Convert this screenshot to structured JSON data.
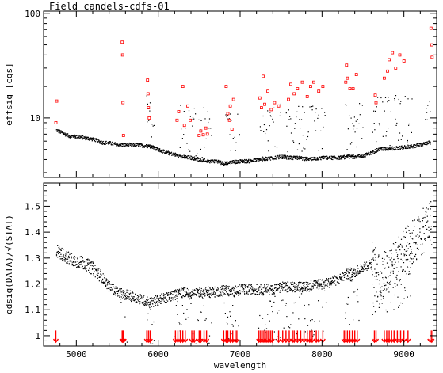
{
  "figure_title": "Field candels-cdfs-01",
  "chart_data": [
    {
      "type": "scatter",
      "panel": "top",
      "title": "",
      "xlabel": "",
      "ylabel": "effsig [cgs]",
      "xlim": [
        4600,
        9400
      ],
      "ylim": [
        2.7,
        105
      ],
      "yscale": "log",
      "yticks_labeled": [
        10,
        100
      ],
      "x_ticks": [
        5000,
        6000,
        7000,
        8000,
        9000
      ],
      "series": [
        {
          "marker": "dot",
          "color": "#000000",
          "x": [
            4750,
            4800,
            4900,
            5000,
            5100,
            5200,
            5300,
            5400,
            5500,
            5600,
            5700,
            5800,
            5900,
            6000,
            6100,
            6200,
            6300,
            6400,
            6500,
            6600,
            6700,
            6800,
            6900,
            7000,
            7100,
            7200,
            7300,
            7400,
            7500,
            7600,
            7700,
            7800,
            7900,
            8000,
            8100,
            8200,
            8300,
            8400,
            8500,
            8600,
            8700,
            8800,
            8900,
            9000,
            9100,
            9200,
            9300
          ],
          "y": [
            7.7,
            7.4,
            6.8,
            6.7,
            6.5,
            6.3,
            5.9,
            5.8,
            5.6,
            5.6,
            5.6,
            5.5,
            5.4,
            5.0,
            4.7,
            4.5,
            4.3,
            4.2,
            4.0,
            3.9,
            3.9,
            3.7,
            3.8,
            3.9,
            3.9,
            4.0,
            4.1,
            4.2,
            4.3,
            4.2,
            4.2,
            4.1,
            4.1,
            4.2,
            4.2,
            4.2,
            4.3,
            4.3,
            4.4,
            4.7,
            5.1,
            5.1,
            5.2,
            5.3,
            5.4,
            5.6,
            5.9
          ]
        },
        {
          "marker": "open-square",
          "color": "#ff0000",
          "x": [
            4750,
            4760,
            5560,
            5565,
            5570,
            5575,
            5870,
            5875,
            5880,
            5890,
            6230,
            6250,
            6300,
            6320,
            6360,
            6390,
            6500,
            6520,
            6550,
            6580,
            6600,
            6830,
            6850,
            6870,
            6880,
            6900,
            6920,
            7240,
            7260,
            7280,
            7300,
            7340,
            7380,
            7420,
            7470,
            7590,
            7620,
            7660,
            7700,
            7760,
            7820,
            7860,
            7900,
            7960,
            8010,
            8290,
            8300,
            8310,
            8340,
            8380,
            8420,
            8650,
            8660,
            8760,
            8800,
            8820,
            8860,
            8900,
            8950,
            9000,
            9330,
            9340,
            9345
          ],
          "y": [
            9.0,
            14.5,
            53.0,
            40.0,
            14.0,
            6.8,
            23.0,
            17.0,
            12.5,
            10.0,
            9.5,
            11.5,
            20.0,
            8.5,
            13.0,
            9.5,
            6.8,
            7.5,
            6.9,
            8.0,
            7.0,
            20.0,
            11.0,
            9.5,
            13.0,
            7.8,
            15.0,
            15.5,
            12.5,
            25.0,
            13.5,
            18.0,
            12.0,
            14.0,
            13.0,
            15.0,
            21.0,
            17.0,
            19.0,
            22.0,
            16.0,
            20.0,
            22.0,
            18.0,
            20.0,
            22.0,
            32.0,
            24.0,
            19.0,
            19.0,
            26.0,
            16.5,
            14.0,
            24.0,
            28.0,
            36.0,
            42.0,
            30.0,
            40.0,
            35.0,
            72.0,
            50.0,
            38.0
          ]
        }
      ]
    },
    {
      "type": "scatter",
      "panel": "bottom",
      "title": "",
      "xlabel": "wavelength",
      "ylabel": "qdsig(DATA)/√(STAT)",
      "xlim": [
        4600,
        9400
      ],
      "ylim": [
        0.96,
        1.59
      ],
      "yticks": [
        1.0,
        1.1,
        1.2,
        1.3,
        1.4,
        1.5
      ],
      "x_ticks": [
        5000,
        6000,
        7000,
        8000,
        9000
      ],
      "series": [
        {
          "marker": "dot",
          "color": "#000000",
          "x": [
            4750,
            4800,
            4900,
            5000,
            5100,
            5200,
            5300,
            5400,
            5500,
            5600,
            5700,
            5800,
            5900,
            6000,
            6100,
            6200,
            6300,
            6400,
            6500,
            6600,
            6700,
            6800,
            6900,
            7000,
            7100,
            7200,
            7300,
            7400,
            7500,
            7600,
            7700,
            7800,
            7900,
            8000,
            8100,
            8200,
            8300,
            8400,
            8500,
            8600,
            8700,
            8800,
            8900,
            9000,
            9100,
            9200,
            9300
          ],
          "y": [
            1.33,
            1.32,
            1.3,
            1.29,
            1.28,
            1.26,
            1.23,
            1.19,
            1.17,
            1.16,
            1.15,
            1.14,
            1.13,
            1.14,
            1.15,
            1.16,
            1.17,
            1.16,
            1.17,
            1.17,
            1.17,
            1.18,
            1.17,
            1.18,
            1.18,
            1.18,
            1.18,
            1.18,
            1.19,
            1.19,
            1.19,
            1.19,
            1.2,
            1.2,
            1.21,
            1.22,
            1.24,
            1.25,
            1.27,
            1.28,
            1.22,
            1.25,
            1.28,
            1.33,
            1.36,
            1.39,
            1.44
          ]
        }
      ],
      "markers": {
        "type": "down-arrow",
        "color": "#ff0000",
        "x": [
          4750,
          5560,
          5570,
          5580,
          5860,
          5880,
          5900,
          6210,
          6240,
          6270,
          6300,
          6330,
          6410,
          6440,
          6500,
          6520,
          6560,
          6590,
          6800,
          6830,
          6850,
          6880,
          6910,
          6940,
          6960,
          7230,
          7250,
          7270,
          7290,
          7320,
          7340,
          7370,
          7390,
          7470,
          7520,
          7560,
          7600,
          7640,
          7660,
          7700,
          7740,
          7780,
          7820,
          7850,
          7880,
          7930,
          7960,
          8010,
          8270,
          8290,
          8310,
          8340,
          8370,
          8400,
          8430,
          8640,
          8660,
          8760,
          8790,
          8820,
          8850,
          8880,
          8920,
          8960,
          9000,
          9050,
          9320,
          9340
        ]
      }
    }
  ]
}
